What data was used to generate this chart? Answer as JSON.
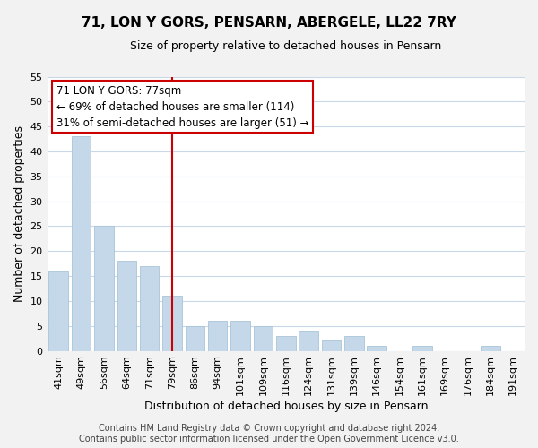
{
  "title": "71, LON Y GORS, PENSARN, ABERGELE, LL22 7RY",
  "subtitle": "Size of property relative to detached houses in Pensarn",
  "xlabel": "Distribution of detached houses by size in Pensarn",
  "ylabel": "Number of detached properties",
  "categories": [
    "41sqm",
    "49sqm",
    "56sqm",
    "64sqm",
    "71sqm",
    "79sqm",
    "86sqm",
    "94sqm",
    "101sqm",
    "109sqm",
    "116sqm",
    "124sqm",
    "131sqm",
    "139sqm",
    "146sqm",
    "154sqm",
    "161sqm",
    "169sqm",
    "176sqm",
    "184sqm",
    "191sqm"
  ],
  "values": [
    16,
    43,
    25,
    18,
    17,
    11,
    5,
    6,
    6,
    5,
    3,
    4,
    2,
    3,
    1,
    0,
    1,
    0,
    0,
    1,
    0
  ],
  "bar_color": "#c5d8ea",
  "bar_edge_color": "#a8c4d8",
  "annotation_title": "71 LON Y GORS: 77sqm",
  "annotation_line1": "← 69% of detached houses are smaller (114)",
  "annotation_line2": "31% of semi-detached houses are larger (51) →",
  "annotation_box_facecolor": "#ffffff",
  "annotation_box_edgecolor": "#cc0000",
  "vline_color": "#cc0000",
  "vline_x_index": 5,
  "ylim": [
    0,
    55
  ],
  "yticks": [
    0,
    5,
    10,
    15,
    20,
    25,
    30,
    35,
    40,
    45,
    50,
    55
  ],
  "footer1": "Contains HM Land Registry data © Crown copyright and database right 2024.",
  "footer2": "Contains public sector information licensed under the Open Government Licence v3.0.",
  "bg_color": "#f2f2f2",
  "plot_bg_color": "#ffffff",
  "grid_color": "#c8d8e8",
  "title_fontsize": 11,
  "subtitle_fontsize": 9,
  "axis_label_fontsize": 9,
  "tick_fontsize": 8,
  "annotation_fontsize": 8.5,
  "footer_fontsize": 7
}
